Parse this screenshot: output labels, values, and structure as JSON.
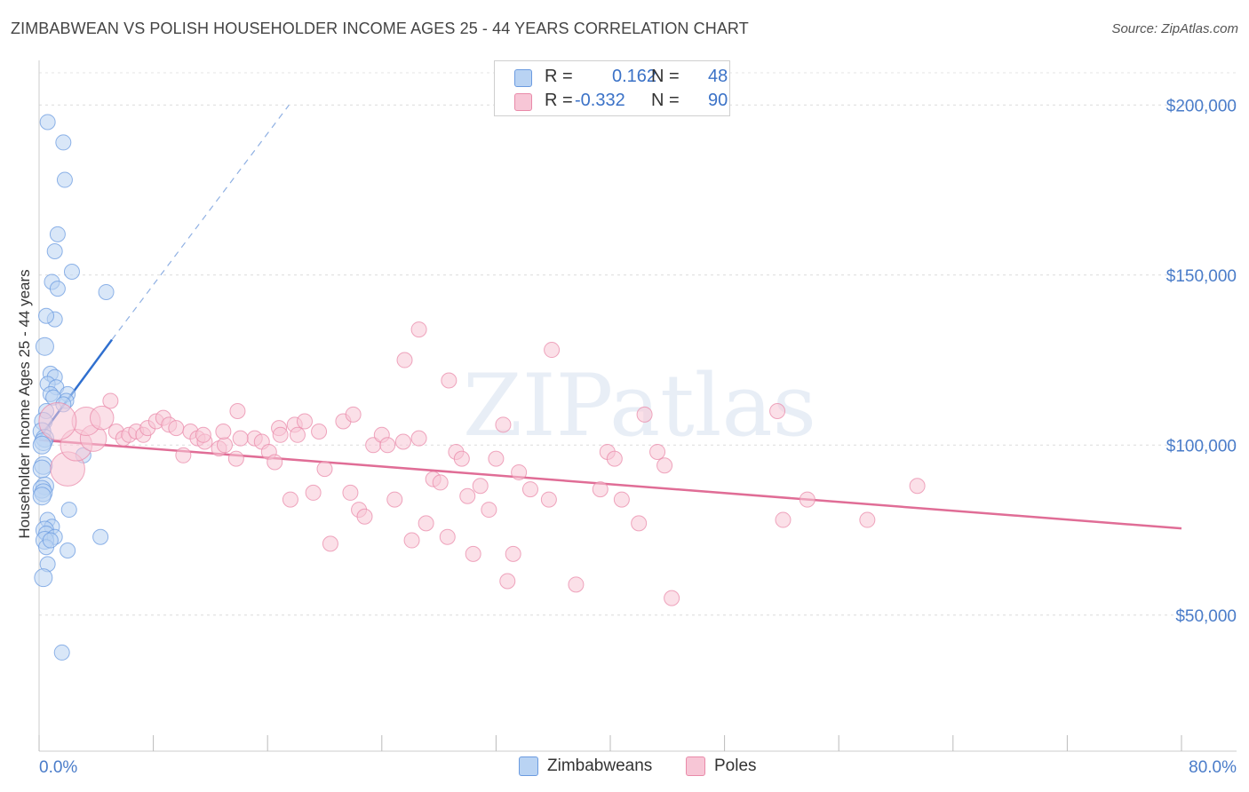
{
  "title": "ZIMBABWEAN VS POLISH HOUSEHOLDER INCOME AGES 25 - 44 YEARS CORRELATION CHART",
  "source": "Source: ZipAtlas.com",
  "watermark": "ZIPatlas",
  "stats": {
    "r_label": "R =",
    "n_label": "N =",
    "rows": [
      {
        "r": "0.162",
        "n": "48",
        "color": "#6b9be0"
      },
      {
        "r": "-0.332",
        "n": "90",
        "color": "#e98aa9"
      }
    ]
  },
  "legend": {
    "items": [
      "Zimbabweans",
      "Poles"
    ]
  },
  "chart_data": {
    "type": "scatter",
    "ylabel": "Householder Income Ages 25 - 44 years",
    "xlim": [
      0,
      80
    ],
    "ylim": [
      10000,
      210000
    ],
    "x_tick_labels": [
      "0.0%",
      "80.0%"
    ],
    "y_ticks": [
      50000,
      100000,
      150000,
      200000
    ],
    "y_tick_labels": [
      "$50,000",
      "$100,000",
      "$150,000",
      "$200,000"
    ],
    "grid": true,
    "series": [
      {
        "name": "Zimbabweans",
        "color": "#6b9be0",
        "fill": "#b9d3f3",
        "trend": {
          "x": [
            0,
            5.1
          ],
          "y": [
            102000,
            131000
          ],
          "dashed_to": {
            "x": 17.5,
            "y": 200000
          }
        },
        "points": [
          [
            0.6,
            195000
          ],
          [
            1.7,
            189000
          ],
          [
            1.8,
            178000
          ],
          [
            1.3,
            162000
          ],
          [
            1.1,
            157000
          ],
          [
            2.3,
            151000
          ],
          [
            0.9,
            148000
          ],
          [
            1.3,
            146000
          ],
          [
            4.7,
            145000
          ],
          [
            1.1,
            137000
          ],
          [
            0.5,
            138000
          ],
          [
            0.4,
            129000
          ],
          [
            0.8,
            121000
          ],
          [
            1.1,
            120000
          ],
          [
            0.6,
            118000
          ],
          [
            1.2,
            117000
          ],
          [
            0.8,
            115000
          ],
          [
            2.0,
            115000
          ],
          [
            1.0,
            114000
          ],
          [
            1.9,
            113000
          ],
          [
            1.7,
            112000
          ],
          [
            0.5,
            110000
          ],
          [
            0.3,
            107000
          ],
          [
            0.2,
            104000
          ],
          [
            0.4,
            102000
          ],
          [
            0.3,
            101000
          ],
          [
            0.2,
            100000
          ],
          [
            3.1,
            97000
          ],
          [
            0.3,
            94000
          ],
          [
            0.2,
            93000
          ],
          [
            0.4,
            88000
          ],
          [
            0.2,
            87000
          ],
          [
            0.3,
            86000
          ],
          [
            0.2,
            85000
          ],
          [
            2.1,
            81000
          ],
          [
            0.6,
            78000
          ],
          [
            0.9,
            76000
          ],
          [
            0.4,
            75000
          ],
          [
            0.5,
            74000
          ],
          [
            1.1,
            73000
          ],
          [
            0.4,
            72000
          ],
          [
            4.3,
            73000
          ],
          [
            0.5,
            70000
          ],
          [
            2.0,
            69000
          ],
          [
            0.6,
            65000
          ],
          [
            0.3,
            61000
          ],
          [
            1.6,
            39000
          ],
          [
            0.8,
            72000
          ]
        ]
      },
      {
        "name": "Poles",
        "color": "#e98aa9",
        "fill": "#f7c6d6",
        "trend": {
          "x": [
            0,
            80
          ],
          "y": [
            101500,
            75500
          ]
        },
        "points": [
          [
            2.0,
            93000
          ],
          [
            2.6,
            100000
          ],
          [
            3.8,
            102000
          ],
          [
            3.3,
            107000
          ],
          [
            4.4,
            108000
          ],
          [
            5.0,
            113000
          ],
          [
            5.4,
            104000
          ],
          [
            5.9,
            102000
          ],
          [
            6.3,
            103000
          ],
          [
            6.8,
            104000
          ],
          [
            7.3,
            103000
          ],
          [
            7.6,
            105000
          ],
          [
            8.2,
            107000
          ],
          [
            8.7,
            108000
          ],
          [
            9.1,
            106000
          ],
          [
            9.6,
            105000
          ],
          [
            10.6,
            104000
          ],
          [
            10.1,
            97000
          ],
          [
            11.1,
            102000
          ],
          [
            11.6,
            101000
          ],
          [
            12.6,
            99000
          ],
          [
            13.0,
            100000
          ],
          [
            13.8,
            96000
          ],
          [
            13.9,
            110000
          ],
          [
            15.1,
            102000
          ],
          [
            15.6,
            101000
          ],
          [
            16.1,
            98000
          ],
          [
            16.5,
            95000
          ],
          [
            16.8,
            105000
          ],
          [
            17.9,
            106000
          ],
          [
            17.6,
            84000
          ],
          [
            18.6,
            107000
          ],
          [
            19.2,
            86000
          ],
          [
            19.6,
            104000
          ],
          [
            20.0,
            93000
          ],
          [
            20.4,
            71000
          ],
          [
            21.3,
            107000
          ],
          [
            21.8,
            86000
          ],
          [
            22.4,
            81000
          ],
          [
            22.8,
            79000
          ],
          [
            23.4,
            100000
          ],
          [
            24.0,
            103000
          ],
          [
            24.4,
            100000
          ],
          [
            24.9,
            84000
          ],
          [
            25.5,
            101000
          ],
          [
            26.1,
            72000
          ],
          [
            26.6,
            102000
          ],
          [
            27.1,
            77000
          ],
          [
            27.6,
            90000
          ],
          [
            28.1,
            89000
          ],
          [
            28.6,
            73000
          ],
          [
            29.2,
            98000
          ],
          [
            29.6,
            96000
          ],
          [
            30.0,
            85000
          ],
          [
            30.4,
            68000
          ],
          [
            30.9,
            88000
          ],
          [
            31.5,
            81000
          ],
          [
            32.0,
            96000
          ],
          [
            32.5,
            106000
          ],
          [
            32.8,
            60000
          ],
          [
            33.2,
            68000
          ],
          [
            33.6,
            92000
          ],
          [
            34.4,
            87000
          ],
          [
            35.7,
            84000
          ],
          [
            37.6,
            59000
          ],
          [
            39.3,
            87000
          ],
          [
            39.8,
            98000
          ],
          [
            40.3,
            96000
          ],
          [
            40.8,
            84000
          ],
          [
            42.0,
            77000
          ],
          [
            43.3,
            98000
          ],
          [
            43.8,
            94000
          ],
          [
            44.3,
            55000
          ],
          [
            51.7,
            110000
          ],
          [
            52.1,
            78000
          ],
          [
            53.8,
            84000
          ],
          [
            58.0,
            78000
          ],
          [
            61.5,
            88000
          ],
          [
            14.1,
            102000
          ],
          [
            16.9,
            103000
          ],
          [
            18.1,
            103000
          ],
          [
            26.6,
            134000
          ],
          [
            35.9,
            128000
          ],
          [
            28.7,
            119000
          ],
          [
            22.0,
            109000
          ],
          [
            25.6,
            125000
          ],
          [
            42.4,
            109000
          ],
          [
            1.3,
            107000
          ],
          [
            11.5,
            103000
          ],
          [
            12.9,
            104000
          ]
        ]
      }
    ]
  }
}
